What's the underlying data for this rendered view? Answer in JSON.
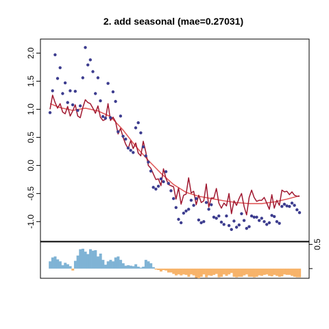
{
  "chart_data": [
    {
      "type": "scatter",
      "title": "2. add seasonal (mae=0.27031)",
      "xlabel": "",
      "ylabel": "",
      "ylim": [
        -1.35,
        2.25
      ],
      "yticks": [
        -1.0,
        -0.5,
        0.0,
        0.5,
        1.0,
        1.5,
        2.0
      ],
      "ytick_labels": [
        "-1.0",
        "-0.5",
        "0.0",
        "0.5",
        "1.0",
        "1.5",
        "2.0"
      ],
      "x_range": [
        1,
        100
      ],
      "colors": {
        "points": "#3d3d8f",
        "trend": "#e05a5a",
        "fit": "#a01830"
      },
      "series": [
        {
          "kind": "points",
          "x": [
            1,
            2,
            3,
            4,
            5,
            6,
            7,
            8,
            9,
            10,
            11,
            12,
            13,
            14,
            15,
            16,
            17,
            18,
            19,
            20,
            21,
            22,
            23,
            24,
            25,
            26,
            27,
            28,
            29,
            30,
            31,
            32,
            33,
            34,
            35,
            36,
            37,
            38,
            39,
            40,
            41,
            42,
            43,
            44,
            45,
            46,
            47,
            48,
            49,
            50,
            51,
            52,
            53,
            54,
            55,
            56,
            57,
            58,
            59,
            60,
            61,
            62,
            63,
            64,
            65,
            66,
            67,
            68,
            69,
            70,
            71,
            72,
            73,
            74,
            75,
            76,
            77,
            78,
            79,
            80,
            81,
            82,
            83,
            84,
            85,
            86,
            87,
            88,
            89,
            90,
            91,
            92,
            93,
            94,
            95,
            96,
            97,
            98,
            99,
            100
          ],
          "y": [
            0.94,
            1.33,
            1.97,
            1.55,
            1.74,
            1.28,
            1.47,
            1.12,
            1.33,
            1.08,
            1.32,
            0.98,
            1.06,
            1.56,
            2.1,
            1.79,
            1.88,
            1.67,
            1.28,
            1.56,
            1.15,
            0.87,
            0.84,
            1.46,
            0.85,
            1.31,
            1.14,
            0.6,
            0.88,
            0.52,
            0.47,
            0.31,
            0.27,
            0.23,
            0.67,
            0.76,
            0.58,
            0.33,
            0.17,
            0.06,
            -0.1,
            -0.39,
            -0.42,
            -0.37,
            -0.24,
            -0.29,
            -0.11,
            -0.32,
            -0.45,
            -0.59,
            -0.75,
            -0.96,
            -1.02,
            -0.85,
            -0.81,
            -0.78,
            -0.62,
            -0.71,
            -0.59,
            -0.97,
            -1.02,
            -1.0,
            -0.66,
            -0.78,
            -0.7,
            -0.92,
            -0.94,
            -0.9,
            -1.01,
            -1.05,
            -0.9,
            -1.07,
            -1.14,
            -0.99,
            -1.1,
            -1.06,
            -0.86,
            -0.98,
            -1.12,
            -1.09,
            -0.9,
            -0.92,
            -0.92,
            -0.98,
            -0.94,
            -1.0,
            -1.05,
            -1.02,
            -0.89,
            -0.91,
            -1.0,
            -1.03,
            -0.73,
            -0.69,
            -0.72,
            -0.73,
            -0.67,
            -0.71,
            -0.79,
            -0.84
          ]
        },
        {
          "kind": "trend",
          "x": [
            1,
            5,
            10,
            15,
            20,
            25,
            30,
            35,
            40,
            45,
            50,
            55,
            60,
            65,
            70,
            75,
            80,
            85,
            90,
            95,
            100
          ],
          "y": [
            1.1,
            1.03,
            0.98,
            1.02,
            0.97,
            0.87,
            0.63,
            0.34,
            0.09,
            -0.14,
            -0.34,
            -0.48,
            -0.55,
            -0.59,
            -0.63,
            -0.66,
            -0.68,
            -0.68,
            -0.65,
            -0.6,
            -0.54
          ]
        },
        {
          "kind": "fit",
          "x": [
            1,
            2,
            3,
            4,
            5,
            6,
            7,
            8,
            9,
            10,
            11,
            12,
            13,
            14,
            15,
            16,
            17,
            18,
            19,
            20,
            21,
            22,
            23,
            24,
            25,
            26,
            27,
            28,
            29,
            30,
            31,
            32,
            33,
            34,
            35,
            36,
            37,
            38,
            39,
            40,
            41,
            42,
            43,
            44,
            45,
            46,
            47,
            48,
            49,
            50,
            51,
            52,
            53,
            54,
            55,
            56,
            57,
            58,
            59,
            60,
            61,
            62,
            63,
            64,
            65,
            66,
            67,
            68,
            69,
            70,
            71,
            72,
            73,
            74,
            75,
            76,
            77,
            78,
            79,
            80,
            81,
            82,
            83,
            84,
            85,
            86,
            87,
            88,
            89,
            90,
            91,
            92,
            93,
            94,
            95,
            96,
            97,
            98,
            99,
            100
          ],
          "y": [
            1.0,
            1.25,
            1.12,
            1.02,
            1.1,
            0.95,
            0.92,
            1.05,
            0.88,
            0.97,
            1.08,
            0.88,
            0.85,
            1.03,
            1.17,
            1.12,
            1.1,
            1.02,
            0.93,
            1.06,
            0.86,
            0.8,
            0.82,
            1.1,
            0.8,
            0.86,
            0.78,
            0.56,
            0.66,
            0.5,
            0.38,
            0.3,
            0.44,
            0.3,
            0.4,
            0.22,
            0.17,
            0.43,
            0.24,
            0.0,
            -0.05,
            -0.15,
            -0.25,
            -0.24,
            -0.36,
            -0.06,
            -0.23,
            -0.34,
            -0.36,
            -0.38,
            -0.6,
            -0.4,
            -0.69,
            -0.53,
            -0.51,
            -0.22,
            -0.49,
            -0.46,
            -0.7,
            -0.53,
            -0.66,
            -0.63,
            -0.33,
            -0.74,
            -0.58,
            -0.58,
            -0.41,
            -0.67,
            -0.76,
            -0.67,
            -0.72,
            -0.5,
            -0.86,
            -0.63,
            -0.71,
            -0.59,
            -0.5,
            -0.73,
            -0.88,
            -0.57,
            -0.44,
            -0.57,
            -0.64,
            -0.62,
            -0.62,
            -0.57,
            -0.67,
            -0.78,
            -0.52,
            -0.76,
            -0.62,
            -0.71,
            -0.44,
            -0.47,
            -0.46,
            -0.52,
            -0.47,
            -0.53,
            -0.55,
            -0.55
          ]
        }
      ]
    },
    {
      "type": "bar",
      "yticks": [
        0.5
      ],
      "ytick_labels": [
        "0.5"
      ],
      "ylim": [
        -0.2,
        0.55
      ],
      "colors": {
        "positive": "#7fb3d5",
        "negative": "#f7b36a"
      },
      "x": [
        1,
        2,
        3,
        4,
        5,
        6,
        7,
        8,
        9,
        10,
        11,
        12,
        13,
        14,
        15,
        16,
        17,
        18,
        19,
        20,
        21,
        22,
        23,
        24,
        25,
        26,
        27,
        28,
        29,
        30,
        31,
        32,
        33,
        34,
        35,
        36,
        37,
        38,
        39,
        40,
        41,
        42,
        43,
        44,
        45,
        46,
        47,
        48,
        49,
        50,
        51,
        52,
        53,
        54,
        55,
        56,
        57,
        58,
        59,
        60,
        61,
        62,
        63,
        64,
        65,
        66,
        67,
        68,
        69,
        70,
        71,
        72,
        73,
        74,
        75,
        76,
        77,
        78,
        79,
        80,
        81,
        82,
        83,
        84,
        85,
        86,
        87,
        88,
        89,
        90,
        91,
        92,
        93,
        94,
        95,
        96,
        97,
        98,
        99,
        100
      ],
      "values": [
        0.15,
        0.23,
        0.25,
        0.19,
        0.15,
        0.07,
        0.12,
        0.09,
        0.05,
        -0.04,
        0.16,
        0.27,
        0.4,
        0.41,
        0.35,
        0.3,
        0.4,
        0.37,
        0.38,
        0.25,
        0.31,
        0.18,
        0.08,
        0.15,
        0.18,
        0.15,
        0.23,
        0.25,
        0.18,
        0.11,
        0.06,
        0.07,
        0.06,
        0.05,
        0.09,
        0.04,
        0.02,
        0.04,
        0.18,
        0.15,
        0.11,
        0.03,
        -0.02,
        -0.03,
        -0.06,
        -0.03,
        -0.04,
        -0.08,
        -0.08,
        -0.11,
        -0.14,
        -0.12,
        -0.14,
        -0.12,
        -0.13,
        -0.17,
        -0.12,
        -0.14,
        -0.19,
        -0.2,
        -0.17,
        -0.12,
        -0.18,
        -0.14,
        -0.15,
        -0.13,
        -0.11,
        -0.18,
        -0.17,
        -0.12,
        -0.15,
        -0.12,
        -0.09,
        -0.17,
        -0.18,
        -0.17,
        -0.17,
        -0.14,
        -0.12,
        -0.17,
        -0.17,
        -0.18,
        -0.17,
        -0.14,
        -0.15,
        -0.13,
        -0.12,
        -0.15,
        -0.16,
        -0.13,
        -0.15,
        -0.17,
        -0.16,
        -0.12,
        -0.13,
        -0.13,
        -0.15,
        -0.17,
        -0.18,
        -0.18
      ]
    }
  ]
}
